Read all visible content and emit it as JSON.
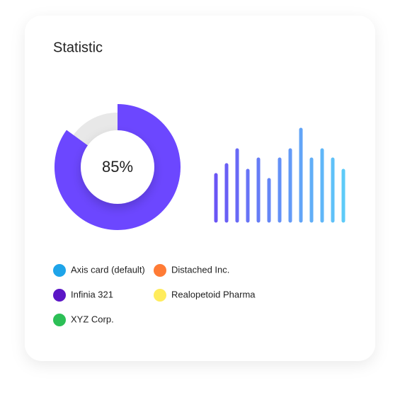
{
  "title": "Statistic",
  "chart_data": [
    {
      "type": "donut",
      "values": [
        85
      ],
      "value_labels": [
        "85%"
      ],
      "color": "#6c47ff",
      "track_color": "#e8e8e8"
    },
    {
      "type": "bar",
      "categories": [
        null,
        null,
        null,
        null,
        null,
        null,
        null,
        null,
        null,
        null,
        null,
        null,
        null
      ],
      "values": [
        65,
        79,
        100,
        71,
        87,
        58,
        87,
        100,
        129,
        87,
        100,
        87,
        71
      ],
      "color_start": "#6a55f5",
      "color_end": "#5ecbf8"
    }
  ],
  "legend": [
    {
      "name": "Axis card (default)",
      "color": "#1ea4e9"
    },
    {
      "name": "Distached Inc.",
      "color": "#ff7b35"
    },
    {
      "name": "Infinia 321",
      "color": "#5b16c6"
    },
    {
      "name": "Realopetoid Pharma",
      "color": "#ffec5c"
    },
    {
      "name": "XYZ Corp.",
      "color": "#2cbf56"
    }
  ]
}
